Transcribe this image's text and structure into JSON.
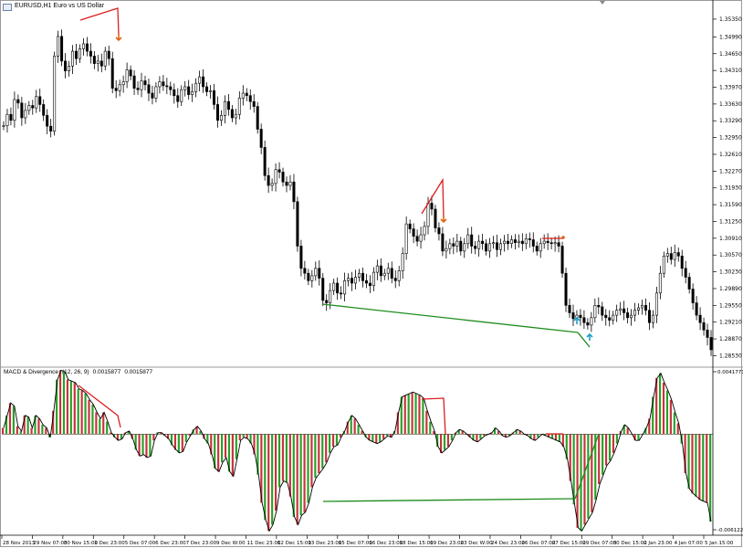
{
  "header": {
    "symbol": "EURUSD,H1",
    "description": "Euro vs US Dollar"
  },
  "indicator": {
    "name": "MACD & Divergence",
    "params": "(12, 26, 9)",
    "value1": "0.0015877",
    "value2": "0.0015877"
  },
  "colors": {
    "bull": "#000000",
    "bear": "#000000",
    "up_arrow": "#19a0c8",
    "down_arrow": "#e06414",
    "bear_div": "#dc1e1e",
    "bull_div": "#1e8c1e",
    "hist_red": "#c8323c",
    "hist_green": "#28a028"
  },
  "chart_data": [
    {
      "type": "candlestick",
      "yticks": [
        "1.35350",
        "1.34990",
        "1.34650",
        "1.34310",
        "1.33970",
        "1.33630",
        "1.33290",
        "1.32950",
        "1.32610",
        "1.32270",
        "1.31930",
        "1.31590",
        "1.31250",
        "1.30910",
        "1.30570",
        "1.30230",
        "1.29890",
        "1.29550",
        "1.29210",
        "1.28870",
        "1.28530"
      ],
      "ylim": [
        1.2839,
        1.3546
      ],
      "close": [
        1.3319,
        1.3342,
        1.333,
        1.3372,
        1.3365,
        1.3335,
        1.335,
        1.336,
        1.3355,
        1.3378,
        1.3362,
        1.334,
        1.3318,
        1.3308,
        1.346,
        1.35,
        1.345,
        1.343,
        1.344,
        1.347,
        1.3455,
        1.3475,
        1.3485,
        1.347,
        1.346,
        1.3445,
        1.345,
        1.344,
        1.347,
        1.3455,
        1.3395,
        1.339,
        1.3402,
        1.3408,
        1.3432,
        1.342,
        1.3395,
        1.3392,
        1.341,
        1.3402,
        1.3385,
        1.3375,
        1.3398,
        1.3408,
        1.34,
        1.3398,
        1.3392,
        1.338,
        1.3368,
        1.3392,
        1.3398,
        1.3382,
        1.3388,
        1.3405,
        1.3418,
        1.3398,
        1.3388,
        1.339,
        1.3362,
        1.333,
        1.334,
        1.3368,
        1.3352,
        1.3335,
        1.3342,
        1.3375,
        1.3385,
        1.338,
        1.3368,
        1.3358,
        1.3312,
        1.3275,
        1.3218,
        1.3198,
        1.3202,
        1.323,
        1.3225,
        1.3205,
        1.3198,
        1.3205,
        1.3165,
        1.3075,
        1.303,
        1.302,
        1.3005,
        1.3015,
        1.303,
        1.301,
        1.2965,
        1.296,
        1.2985,
        1.3,
        1.298,
        1.2978,
        1.3005,
        1.301,
        1.3,
        1.3012,
        1.302,
        1.3005,
        1.3,
        1.2995,
        1.3022,
        1.3035,
        1.3015,
        1.302,
        1.303,
        1.301,
        1.3005,
        1.3025,
        1.306,
        1.312,
        1.311,
        1.3095,
        1.3085,
        1.3098,
        1.3115,
        1.3162,
        1.315,
        1.3112,
        1.31,
        1.3065,
        1.307,
        1.308,
        1.3075,
        1.3085,
        1.3065,
        1.308,
        1.3098,
        1.3075,
        1.307,
        1.3085,
        1.308,
        1.3065,
        1.308,
        1.3082,
        1.3068,
        1.308,
        1.3085,
        1.308,
        1.3088,
        1.3082,
        1.3085,
        1.308,
        1.309,
        1.3088,
        1.3075,
        1.3065,
        1.308,
        1.3085,
        1.3082,
        1.308,
        1.3082,
        1.3075,
        1.302,
        1.2955,
        1.294,
        1.2928,
        1.2935,
        1.293,
        1.292,
        1.2915,
        1.293,
        1.2955,
        1.2952,
        1.2935,
        1.293,
        1.2925,
        1.2935,
        1.2945,
        1.2948,
        1.294,
        1.293,
        1.2935,
        1.2945,
        1.295,
        1.2955,
        1.2945,
        1.292,
        1.2935,
        1.298,
        1.302,
        1.3055,
        1.306,
        1.3048,
        1.3062,
        1.3055,
        1.303,
        1.3012,
        1.2988,
        1.296,
        1.2935,
        1.292,
        1.2905,
        1.289,
        1.2865
      ]
    },
    {
      "type": "bar",
      "yticks": [
        "0.0041771",
        "-0.0061222"
      ],
      "ylim": [
        -0.0061222,
        0.0041771
      ],
      "values": [
        0.0004,
        0.0012,
        0.002,
        0.0018,
        0.0005,
        0.0002,
        0.0012,
        0.0011,
        0.0004,
        0.0012,
        0.001,
        0.0006,
        0.0004,
        -0.0002,
        0.0015,
        0.0035,
        0.0041,
        0.004,
        0.0035,
        0.0034,
        0.0033,
        0.0029,
        0.0028,
        0.0026,
        0.0022,
        0.0019,
        0.0014,
        0.001,
        0.0014,
        0.0008,
        0.0001,
        -0.0002,
        -0.0004,
        -0.0003,
        0.0001,
        0.0002,
        -0.0003,
        -0.001,
        -0.0014,
        -0.0013,
        -0.0015,
        -0.0014,
        -0.0004,
        0.0001,
        0.0001,
        -0.0001,
        -0.0003,
        -0.0007,
        -0.001,
        -0.0012,
        -0.0011,
        -0.0005,
        -0.0001,
        0.0003,
        0.0005,
        0.0002,
        -0.0003,
        -0.0006,
        -0.0013,
        -0.0022,
        -0.0024,
        -0.0018,
        -0.0015,
        -0.0024,
        -0.0027,
        -0.0016,
        -0.0004,
        -0.0002,
        -0.0003,
        -0.0006,
        -0.0013,
        -0.0026,
        -0.0044,
        -0.0055,
        -0.0062,
        -0.0058,
        -0.0049,
        -0.0034,
        -0.003,
        -0.0031,
        -0.004,
        -0.0053,
        -0.0058,
        -0.0052,
        -0.005,
        -0.0044,
        -0.0034,
        -0.0028,
        -0.0025,
        -0.0022,
        -0.0018,
        -0.0012,
        -0.0008,
        -0.0007,
        -0.0002,
        0.0002,
        0.0008,
        0.0012,
        0.001,
        0.0006,
        0.0002,
        -0.0002,
        -0.0004,
        -0.0005,
        -0.0006,
        -0.0005,
        -0.0003,
        -0.0001,
        -0.0002,
        0.0002,
        0.0014,
        0.0024,
        0.0025,
        0.0026,
        0.0027,
        0.0026,
        0.0025,
        0.0023,
        0.0015,
        0.0008,
        0.0002,
        -0.0008,
        -0.0012,
        -0.001,
        -0.0008,
        -0.0004,
        0.0001,
        0.0003,
        0.0002,
        0.0,
        -0.0002,
        -0.0004,
        -0.0005,
        -0.0003,
        -0.0001,
        0.0,
        0.0001,
        0.0004,
        0.0002,
        -0.0001,
        -0.0002,
        -0.0001,
        0.0001,
        0.0003,
        0.0002,
        0.0,
        -0.0001,
        -0.0003,
        -0.0004,
        -0.0002,
        0.0,
        -0.0001,
        -0.0002,
        -0.0003,
        -0.0004,
        -0.0005,
        -0.0008,
        -0.0016,
        -0.003,
        -0.0045,
        -0.006,
        -0.0062,
        -0.0058,
        -0.0054,
        -0.005,
        -0.0042,
        -0.0032,
        -0.0026,
        -0.002,
        -0.0017,
        -0.0012,
        -0.0006,
        0.0002,
        0.0006,
        0.0004,
        0.0,
        -0.0004,
        -0.0004,
        0.0,
        0.0004,
        0.001,
        0.0024,
        0.0036,
        0.0039,
        0.0033,
        0.0028,
        0.0022,
        0.0014,
        0.0007,
        -0.0006,
        -0.0025,
        -0.0035,
        -0.0038,
        -0.004,
        -0.0042,
        -0.0043,
        -0.0044,
        -0.0056
      ]
    }
  ],
  "xaxis": {
    "labels": [
      "28 Nov 2013",
      "29 Nov 07:00",
      "30 Nov 15:00",
      "1 Dec 23:00",
      "5 Dec 07:00",
      "6 Dec 23:00",
      "7 Dec 23:00",
      "9 Dec W:00",
      "11 Dec 23:00",
      "12 Dec 15:00",
      "13 Dec 23:00",
      "15 Dec 07:00",
      "16 Dec 23:00",
      "18 Dec 15:00",
      "19 Dec 23:00",
      "23 Dec W:00",
      "24 Dec 23:00",
      "26 Dec 07:00",
      "27 Dec 15:00",
      "29 Dec 07:00",
      "30 Dec 15:00",
      "2 Jan 23:00",
      "4 Jan 07:00",
      "5 Jan 15:00"
    ]
  }
}
